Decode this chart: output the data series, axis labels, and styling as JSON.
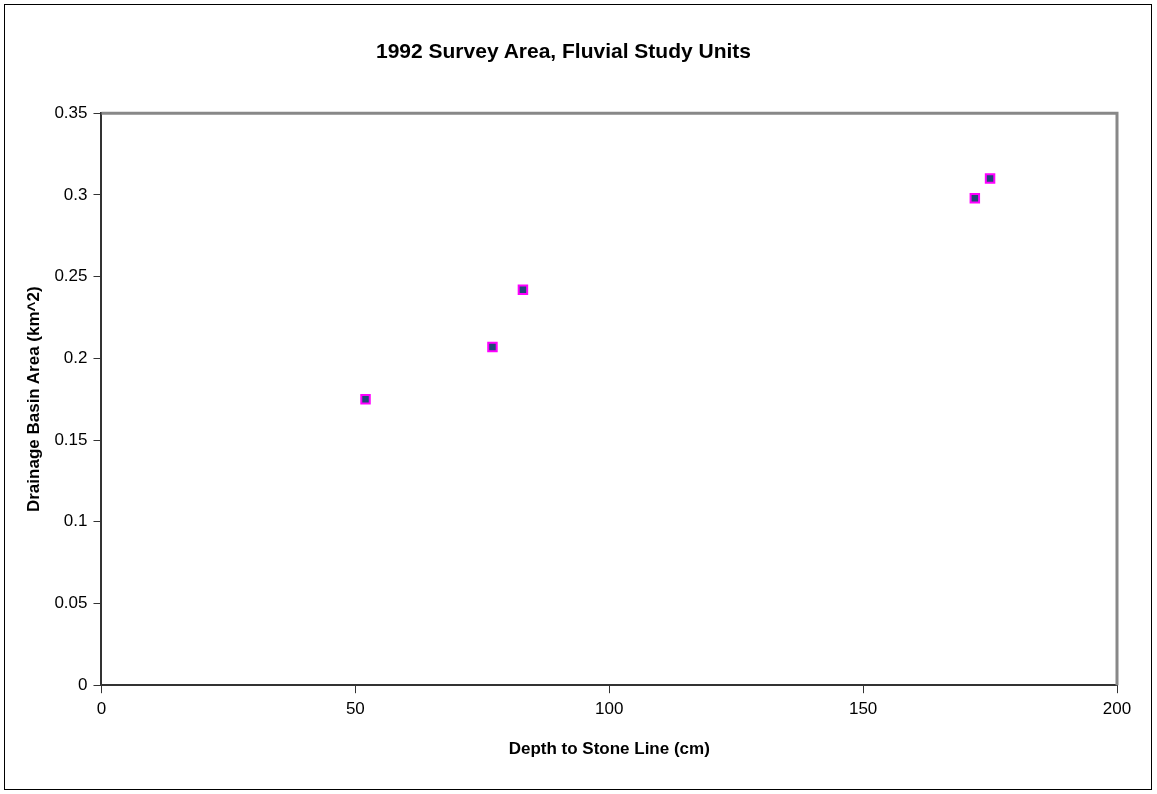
{
  "chart_data": {
    "type": "scatter",
    "title": "1992 Survey Area, Fluvial Study Units",
    "xlabel": "Depth to Stone Line (cm)",
    "ylabel": "Drainage Basin Area (km^2)",
    "x": [
      52,
      77,
      83,
      172,
      175
    ],
    "series": [
      {
        "color": "#1f4776",
        "values": [
          0.175,
          0.207,
          0.242,
          0.298,
          0.31
        ]
      }
    ],
    "xlim": [
      0,
      200
    ],
    "xticks": [
      0,
      50,
      100,
      150,
      200
    ],
    "ylim": [
      0,
      0.35
    ],
    "yticks": [
      0,
      0.05,
      0.1,
      0.15,
      0.2,
      0.25,
      0.3,
      0.35
    ],
    "grid": false,
    "legend": false,
    "marker": "square"
  }
}
